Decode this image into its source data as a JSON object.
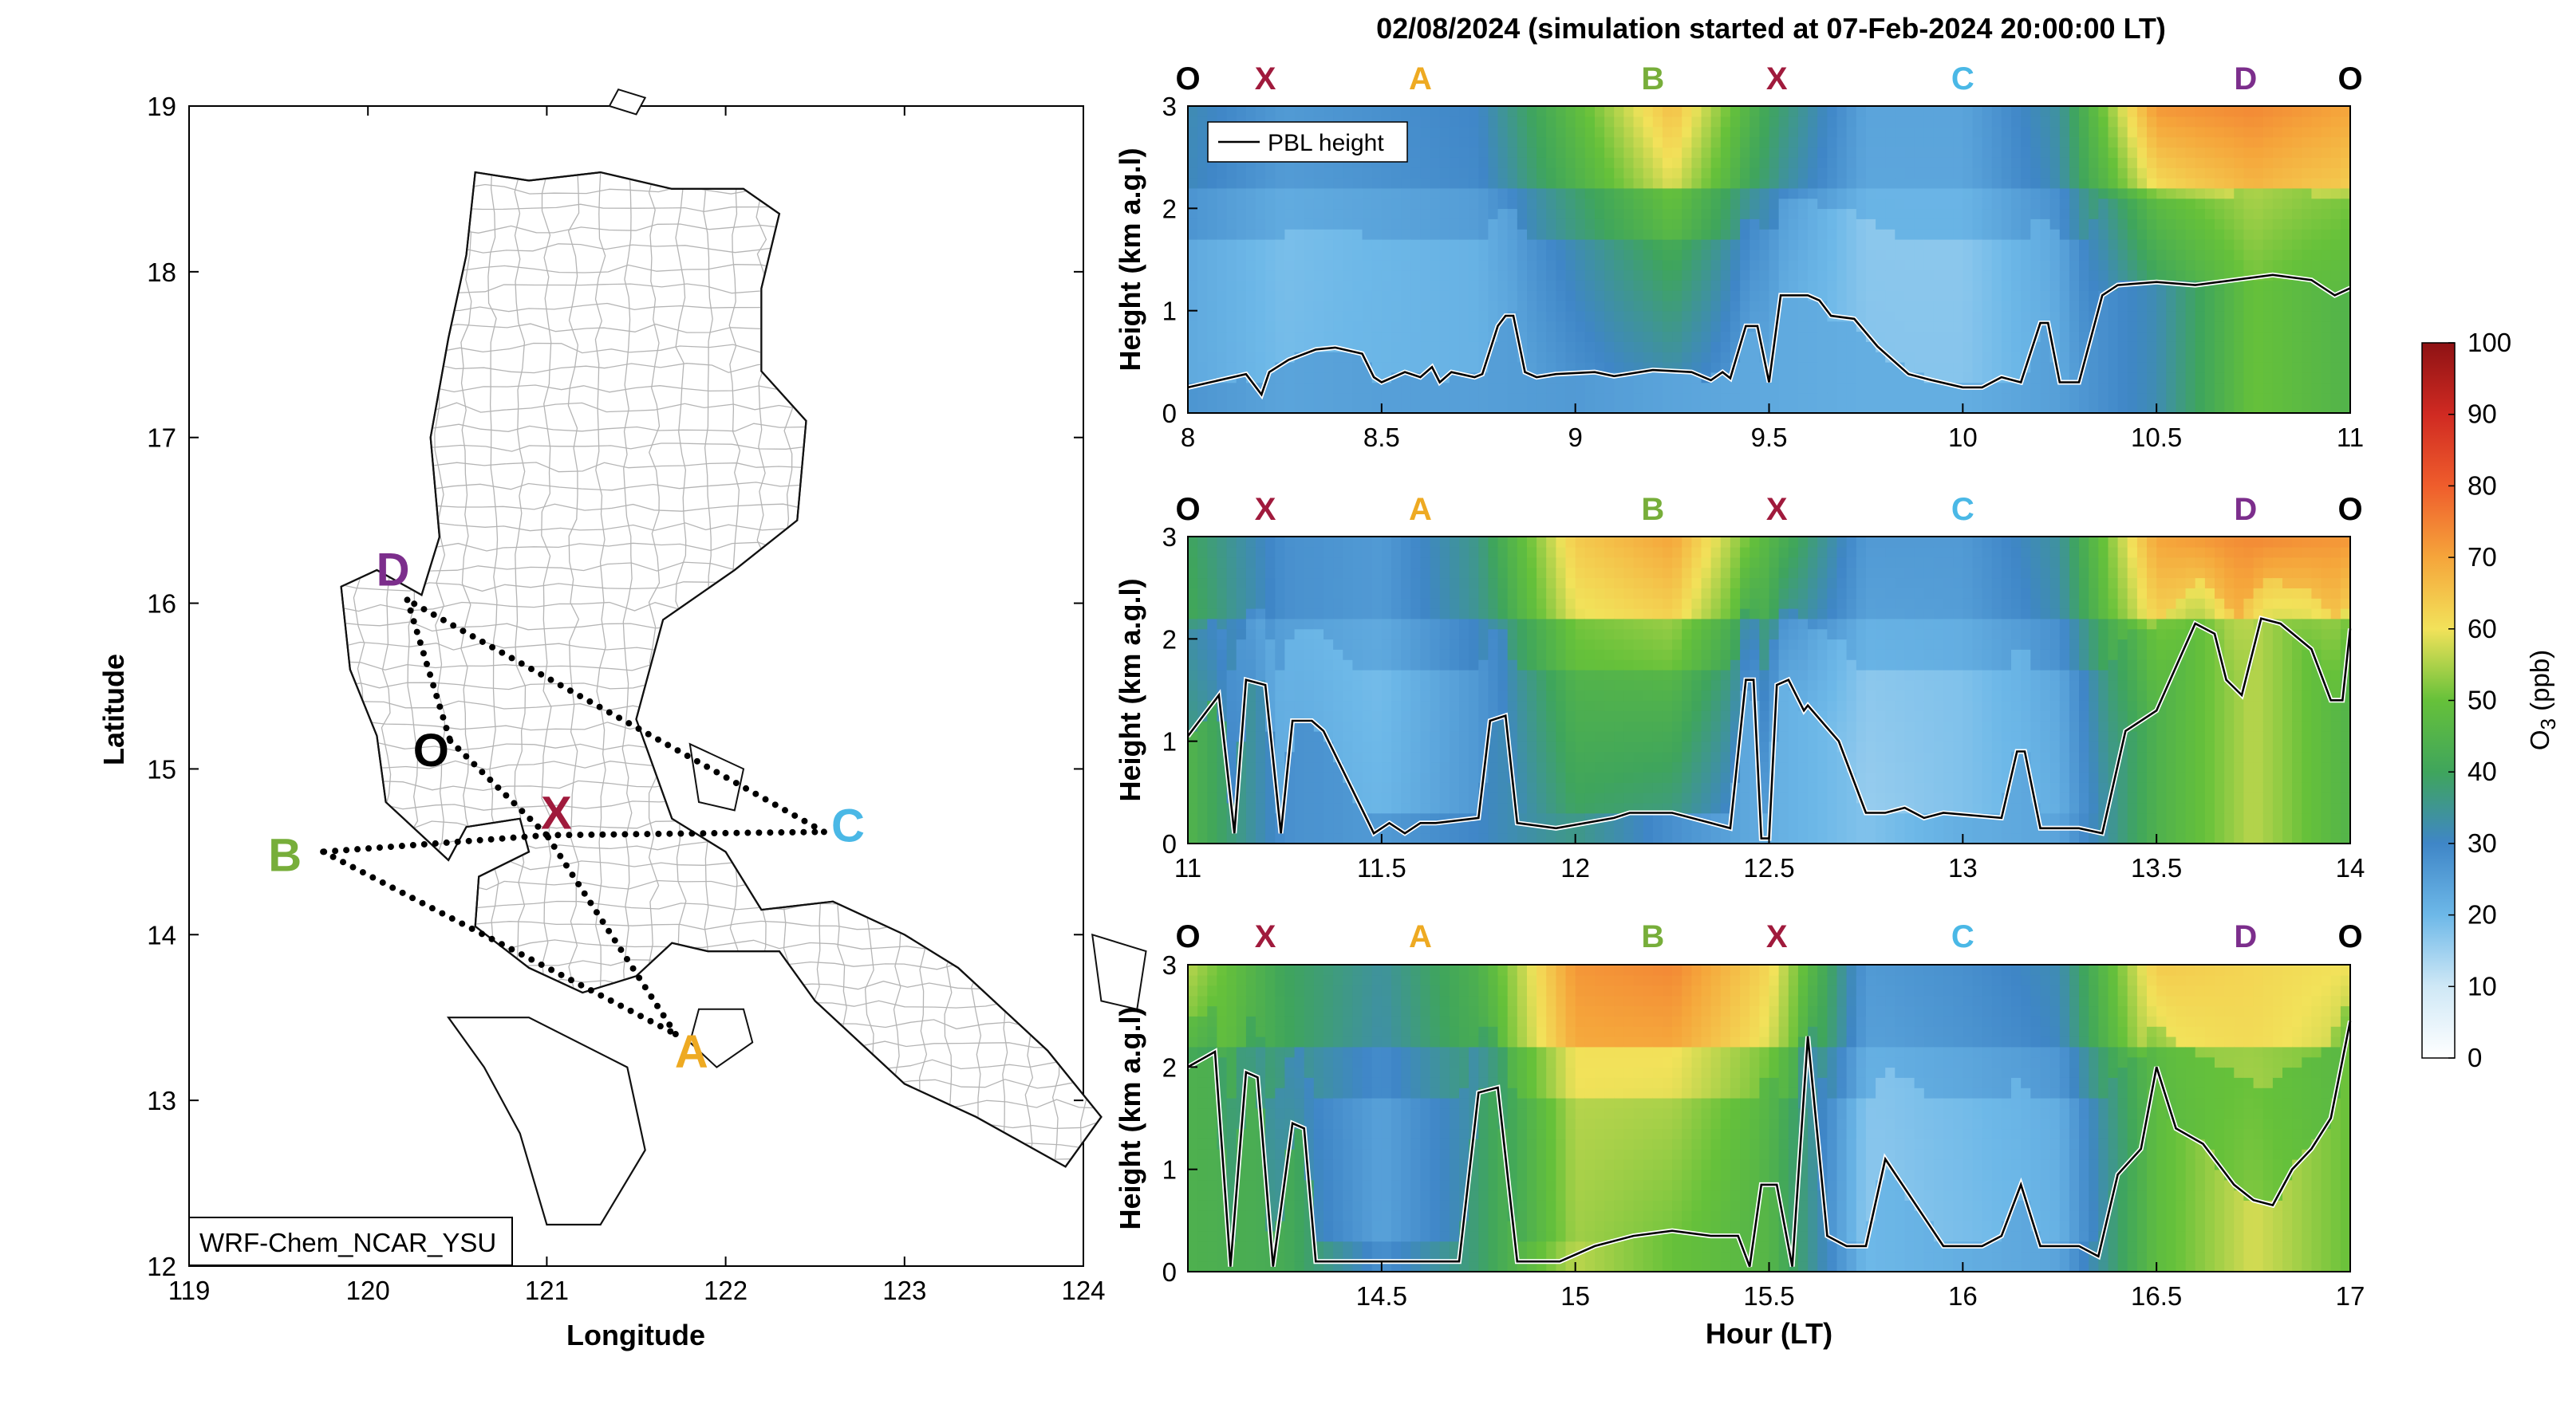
{
  "figure_title": "02/08/2024 (simulation started at 07-Feb-2024 20:00:00 LT)",
  "colors": {
    "O": "#000000",
    "X": "#a01a3c",
    "A": "#eeaa22",
    "B": "#77ae3a",
    "C": "#4ab8e6",
    "D": "#7c2e8c"
  },
  "map": {
    "xlabel": "Longitude",
    "ylabel": "Latitude",
    "xlim": [
      119,
      124
    ],
    "ylim": [
      12,
      19
    ],
    "xticks": [
      "119",
      "120",
      "121",
      "122",
      "123",
      "124"
    ],
    "yticks": [
      "12",
      "13",
      "14",
      "15",
      "16",
      "17",
      "18",
      "19"
    ],
    "model_label": "WRF-Chem_NCAR_YSU",
    "points": [
      {
        "name": "D",
        "lon": 120.22,
        "lat": 16.02
      },
      {
        "name": "O",
        "lon": 120.46,
        "lat": 15.17
      },
      {
        "name": "X",
        "lon": 121.0,
        "lat": 14.6
      },
      {
        "name": "B",
        "lon": 119.75,
        "lat": 14.5
      },
      {
        "name": "C",
        "lon": 122.55,
        "lat": 14.62
      },
      {
        "name": "A",
        "lon": 121.72,
        "lat": 13.4
      }
    ],
    "route_segments": [
      [
        "D",
        "O"
      ],
      [
        "O",
        "X"
      ],
      [
        "X",
        "B"
      ],
      [
        "B",
        "A"
      ],
      [
        "A",
        "X"
      ],
      [
        "X",
        "C"
      ],
      [
        "C",
        "D"
      ]
    ]
  },
  "chart_data": [
    {
      "type": "heatmap",
      "title": "02/08/2024 (simulation started at 07-Feb-2024 20:00:00 LT)",
      "xlabel": "",
      "ylabel": "Height (km a.g.l)",
      "xlim": [
        8,
        11
      ],
      "ylim": [
        0,
        3
      ],
      "xticks": [
        "8",
        "8.5",
        "9",
        "9.5",
        "10",
        "10.5",
        "11"
      ],
      "yticks": [
        "0",
        "1",
        "2",
        "3"
      ],
      "route_labels": [
        {
          "name": "O",
          "hour": 8.0
        },
        {
          "name": "X",
          "hour": 8.2
        },
        {
          "name": "A",
          "hour": 8.6
        },
        {
          "name": "B",
          "hour": 9.2
        },
        {
          "name": "X",
          "hour": 9.52
        },
        {
          "name": "C",
          "hour": 10.0
        },
        {
          "name": "D",
          "hour": 10.73
        },
        {
          "name": "O",
          "hour": 11.0
        }
      ],
      "legend": "PBL height",
      "pbl_height_km": {
        "x": [
          8.0,
          8.15,
          8.19,
          8.21,
          8.26,
          8.33,
          8.38,
          8.45,
          8.48,
          8.5,
          8.56,
          8.6,
          8.63,
          8.65,
          8.68,
          8.74,
          8.76,
          8.8,
          8.82,
          8.84,
          8.87,
          8.9,
          8.95,
          9.05,
          9.1,
          9.2,
          9.3,
          9.35,
          9.38,
          9.4,
          9.44,
          9.47,
          9.5,
          9.53,
          9.6,
          9.63,
          9.66,
          9.72,
          9.78,
          9.86,
          9.92,
          10.0,
          10.05,
          10.1,
          10.15,
          10.2,
          10.22,
          10.25,
          10.3,
          10.36,
          10.4,
          10.5,
          10.6,
          10.7,
          10.8,
          10.9,
          10.96,
          11.0
        ],
        "y": [
          0.25,
          0.38,
          0.18,
          0.4,
          0.52,
          0.62,
          0.64,
          0.58,
          0.35,
          0.3,
          0.4,
          0.35,
          0.45,
          0.3,
          0.4,
          0.35,
          0.38,
          0.85,
          0.95,
          0.95,
          0.4,
          0.35,
          0.38,
          0.4,
          0.36,
          0.42,
          0.4,
          0.32,
          0.4,
          0.34,
          0.85,
          0.85,
          0.3,
          1.15,
          1.15,
          1.1,
          0.95,
          0.92,
          0.65,
          0.38,
          0.32,
          0.25,
          0.25,
          0.35,
          0.3,
          0.88,
          0.88,
          0.3,
          0.3,
          1.15,
          1.25,
          1.28,
          1.25,
          1.3,
          1.35,
          1.3,
          1.15,
          1.22
        ]
      },
      "o3_ppb_mean_by_hour": {
        "hour": [
          8.0,
          8.25,
          8.5,
          8.75,
          9.0,
          9.25,
          9.5,
          9.75,
          10.0,
          10.25,
          10.5,
          10.75,
          11.0
        ],
        "surface_0_to_1km": [
          27,
          24,
          25,
          25,
          26,
          24,
          23,
          22,
          22,
          25,
          32,
          50,
          45
        ],
        "upper_2_to_3km": [
          32,
          26,
          28,
          30,
          48,
          66,
          40,
          24,
          24,
          34,
          72,
          74,
          70
        ]
      },
      "colorbar": {
        "label": "O3 (ppb)",
        "min": 0,
        "max": 100
      }
    },
    {
      "type": "heatmap",
      "title": "",
      "xlabel": "",
      "ylabel": "Height (km a.g.l)",
      "xlim": [
        11,
        14
      ],
      "ylim": [
        0,
        3
      ],
      "xticks": [
        "11",
        "11.5",
        "12",
        "12.5",
        "13",
        "13.5",
        "14"
      ],
      "yticks": [
        "0",
        "1",
        "2",
        "3"
      ],
      "route_labels": [
        {
          "name": "O",
          "hour": 11.0
        },
        {
          "name": "X",
          "hour": 11.2
        },
        {
          "name": "A",
          "hour": 11.6
        },
        {
          "name": "B",
          "hour": 12.2
        },
        {
          "name": "X",
          "hour": 12.52
        },
        {
          "name": "C",
          "hour": 13.0
        },
        {
          "name": "D",
          "hour": 13.73
        },
        {
          "name": "O",
          "hour": 14.0
        }
      ],
      "pbl_height_km": {
        "x": [
          11.0,
          11.08,
          11.12,
          11.15,
          11.2,
          11.24,
          11.27,
          11.32,
          11.35,
          11.48,
          11.52,
          11.56,
          11.6,
          11.64,
          11.75,
          11.78,
          11.82,
          11.85,
          11.95,
          12.1,
          12.14,
          12.25,
          12.35,
          12.4,
          12.44,
          12.46,
          12.48,
          12.5,
          12.52,
          12.55,
          12.59,
          12.6,
          12.68,
          12.75,
          12.8,
          12.85,
          12.9,
          12.95,
          13.1,
          13.14,
          13.16,
          13.2,
          13.3,
          13.36,
          13.42,
          13.5,
          13.6,
          13.65,
          13.68,
          13.72,
          13.77,
          13.82,
          13.9,
          13.95,
          13.98,
          14.0
        ],
        "y": [
          1.05,
          1.45,
          0.1,
          1.6,
          1.55,
          0.1,
          1.2,
          1.2,
          1.1,
          0.1,
          0.2,
          0.1,
          0.2,
          0.2,
          0.25,
          1.2,
          1.25,
          0.2,
          0.15,
          0.25,
          0.3,
          0.3,
          0.2,
          0.15,
          1.6,
          1.6,
          0.05,
          0.05,
          1.55,
          1.6,
          1.3,
          1.35,
          1.0,
          0.3,
          0.3,
          0.35,
          0.25,
          0.3,
          0.25,
          0.9,
          0.9,
          0.15,
          0.15,
          0.1,
          1.1,
          1.3,
          2.15,
          2.05,
          1.6,
          1.45,
          2.2,
          2.15,
          1.9,
          1.4,
          1.4,
          2.1
        ]
      },
      "o3_ppb_mean_by_hour": {
        "hour": [
          11.0,
          11.25,
          11.5,
          11.75,
          12.0,
          12.25,
          12.5,
          12.75,
          13.0,
          13.25,
          13.5,
          13.75,
          14.0
        ],
        "surface_0_to_1km": [
          45,
          28,
          26,
          30,
          36,
          28,
          22,
          18,
          22,
          24,
          44,
          56,
          45
        ],
        "upper_2_to_3km": [
          40,
          28,
          26,
          36,
          64,
          70,
          46,
          26,
          26,
          34,
          70,
          74,
          72
        ]
      },
      "colorbar": {
        "label": "O3 (ppb)",
        "min": 0,
        "max": 100
      }
    },
    {
      "type": "heatmap",
      "title": "",
      "xlabel": "Hour (LT)",
      "ylabel": "Height (km a.g.l)",
      "xlim": [
        14,
        17
      ],
      "ylim": [
        0,
        3
      ],
      "xticks": [
        "14.5",
        "15",
        "15.5",
        "16",
        "16.5",
        "17"
      ],
      "yticks": [
        "0",
        "1",
        "2",
        "3"
      ],
      "route_labels": [
        {
          "name": "O",
          "hour": 14.0
        },
        {
          "name": "X",
          "hour": 14.2
        },
        {
          "name": "A",
          "hour": 14.6
        },
        {
          "name": "B",
          "hour": 15.2
        },
        {
          "name": "X",
          "hour": 15.52
        },
        {
          "name": "C",
          "hour": 16.0
        },
        {
          "name": "D",
          "hour": 16.73
        },
        {
          "name": "O",
          "hour": 17.0
        }
      ],
      "pbl_height_km": {
        "x": [
          14.0,
          14.07,
          14.11,
          14.15,
          14.18,
          14.22,
          14.27,
          14.3,
          14.33,
          14.4,
          14.45,
          14.5,
          14.6,
          14.7,
          14.75,
          14.8,
          14.85,
          14.9,
          14.96,
          15.05,
          15.15,
          15.25,
          15.35,
          15.42,
          15.45,
          15.48,
          15.52,
          15.56,
          15.6,
          15.65,
          15.7,
          15.75,
          15.8,
          15.95,
          16.05,
          16.1,
          16.15,
          16.2,
          16.3,
          16.35,
          16.4,
          16.46,
          16.5,
          16.55,
          16.62,
          16.7,
          16.75,
          16.8,
          16.85,
          16.9,
          16.95,
          17.0
        ],
        "y": [
          2.0,
          2.15,
          0.05,
          1.95,
          1.9,
          0.05,
          1.45,
          1.4,
          0.1,
          0.1,
          0.1,
          0.1,
          0.1,
          0.1,
          1.75,
          1.8,
          0.1,
          0.1,
          0.1,
          0.25,
          0.35,
          0.4,
          0.35,
          0.35,
          0.05,
          0.85,
          0.85,
          0.05,
          2.3,
          0.35,
          0.25,
          0.25,
          1.1,
          0.25,
          0.25,
          0.35,
          0.85,
          0.25,
          0.25,
          0.15,
          0.95,
          1.2,
          2.0,
          1.4,
          1.25,
          0.85,
          0.7,
          0.65,
          1.0,
          1.2,
          1.5,
          2.45
        ]
      },
      "o3_ppb_mean_by_hour": {
        "hour": [
          14.0,
          14.25,
          14.5,
          14.75,
          15.0,
          15.25,
          15.5,
          15.75,
          16.0,
          16.25,
          16.5,
          16.75,
          17.0
        ],
        "surface_0_to_1km": [
          44,
          42,
          28,
          38,
          56,
          50,
          46,
          20,
          22,
          24,
          48,
          58,
          50
        ],
        "upper_2_to_3km": [
          56,
          40,
          34,
          44,
          72,
          74,
          62,
          26,
          28,
          32,
          64,
          62,
          60
        ]
      },
      "colorbar": {
        "label": "O3 (ppb)",
        "min": 0,
        "max": 100
      }
    }
  ],
  "colorbar": {
    "label": "O3 (ppb)",
    "ticks": [
      "0",
      "10",
      "20",
      "30",
      "40",
      "50",
      "60",
      "70",
      "80",
      "90",
      "100"
    ],
    "min": 0,
    "max": 100
  }
}
